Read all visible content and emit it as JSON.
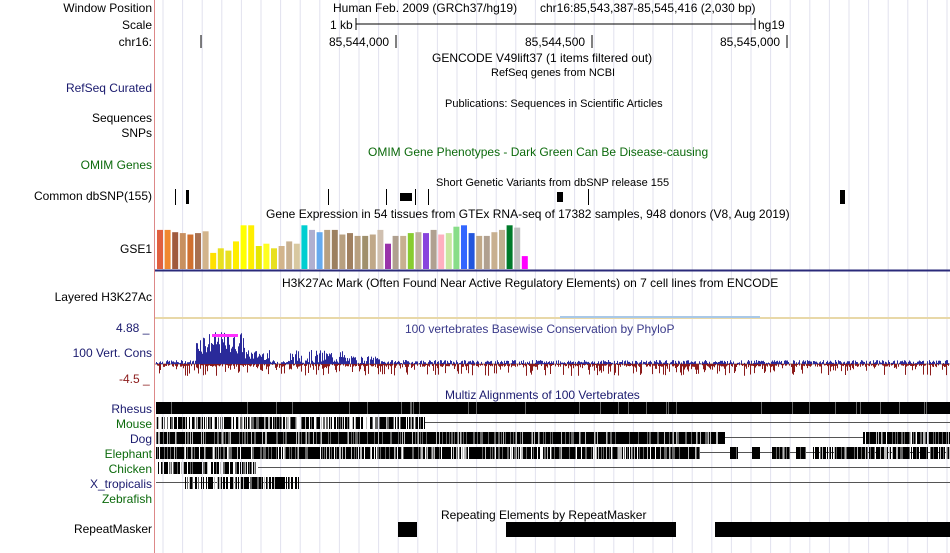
{
  "header": {
    "window_position_label": "Window Position",
    "window_position_value": "Human Feb. 2009 (GRCh37/hg19)",
    "window_coords": "chr16:85,543,387-85,545,416 (2,030 bp)",
    "scale_label": "Scale",
    "scale_value": "1 kb",
    "scale_assembly": "hg19",
    "chrom_label": "chr16:",
    "ticks": [
      "85,544,000",
      "85,544,500",
      "85,545,000"
    ]
  },
  "tracks": {
    "gencode": {
      "title": "GENCODE V49lift37 (1 items filtered out)"
    },
    "refseq": {
      "label": "RefSeq Curated",
      "title": "RefSeq genes from NCBI"
    },
    "publications": {
      "title": "Publications: Sequences in Scientific Articles"
    },
    "sequences": {
      "label": "Sequences"
    },
    "snps": {
      "label": "SNPs"
    },
    "omim": {
      "label": "OMIM Genes",
      "title": "OMIM Gene Phenotypes - Dark Green Can Be Disease-causing"
    },
    "dbsnp": {
      "label": "Common dbSNP(155)",
      "title": "Short Genetic Variants from dbSNP release 155"
    },
    "gtex": {
      "label": "GSE1",
      "title": "Gene Expression in 54 tissues from GTEx RNA-seq of 17382 samples, 948 donors (V8, Aug 2019)",
      "values": [
        0.85,
        0.85,
        0.8,
        0.78,
        0.75,
        0.78,
        0.82,
        0.35,
        0.45,
        0.4,
        0.6,
        0.95,
        0.95,
        0.5,
        0.55,
        0.45,
        0.5,
        0.6,
        0.55,
        0.95,
        0.85,
        0.8,
        0.85,
        0.85,
        0.75,
        0.78,
        0.72,
        0.72,
        0.75,
        0.85,
        0.55,
        0.72,
        0.72,
        0.78,
        0.8,
        0.78,
        0.85,
        0.75,
        0.78,
        0.92,
        0.95,
        0.78,
        0.72,
        0.72,
        0.8,
        0.85,
        0.95,
        0.9,
        0.28
      ],
      "colors": [
        "#e06040",
        "#f08830",
        "#a05a3c",
        "#c89060",
        "#d07030",
        "#a87050",
        "#d2b48c",
        "#ffe000",
        "#e8e020",
        "#e8e020",
        "#ffee00",
        "#ffff00",
        "#ffee00",
        "#e6e600",
        "#ffff20",
        "#e8e020",
        "#d2b48c",
        "#c8b090",
        "#d8c8a0",
        "#00ced1",
        "#b0b0d0",
        "#66aaee",
        "#b8a080",
        "#9c8060",
        "#b8a080",
        "#a08060",
        "#b8a080",
        "#a0906c",
        "#c0a888",
        "#d0c0b0",
        "#9933aa",
        "#b0a090",
        "#c8b090",
        "#88cc30",
        "#c0b0a0",
        "#8844dd",
        "#b0a090",
        "#ffb0c0",
        "#c8e8a0",
        "#88dd88",
        "#3366ff",
        "#2255dd",
        "#c0a888",
        "#b0a090",
        "#c8b090",
        "#c0b090",
        "#007a2a",
        "#c0c0c0",
        "#ff00ff"
      ]
    },
    "h3k27ac": {
      "label": "Layered H3K27Ac",
      "title": "H3K27Ac Mark (Often Found Near Active Regulatory Elements) on 7 cell lines from ENCODE"
    },
    "phylop": {
      "label": "100 Vert. Cons",
      "title": "100 vertebrates Basewise Conservation by PhyloP",
      "max": "4.88 _",
      "min": "-4.5 _"
    },
    "multiz": {
      "title": "Multiz Alignments of 100 Vertebrates",
      "species": [
        "Rhesus",
        "Mouse",
        "Dog",
        "Elephant",
        "Chicken",
        "X_tropicalis",
        "Zebrafish"
      ]
    },
    "repeatmasker": {
      "label": "RepeatMasker",
      "title": "Repeating Elements by RepeatMasker"
    }
  },
  "colors": {
    "track_blue": "#1a1a6e",
    "omim_green": "#0c6a0c",
    "gtex_line": "#2a2a7a",
    "phylop_pos": "#2a2a9a",
    "phylop_neg": "#8b1a1a"
  }
}
